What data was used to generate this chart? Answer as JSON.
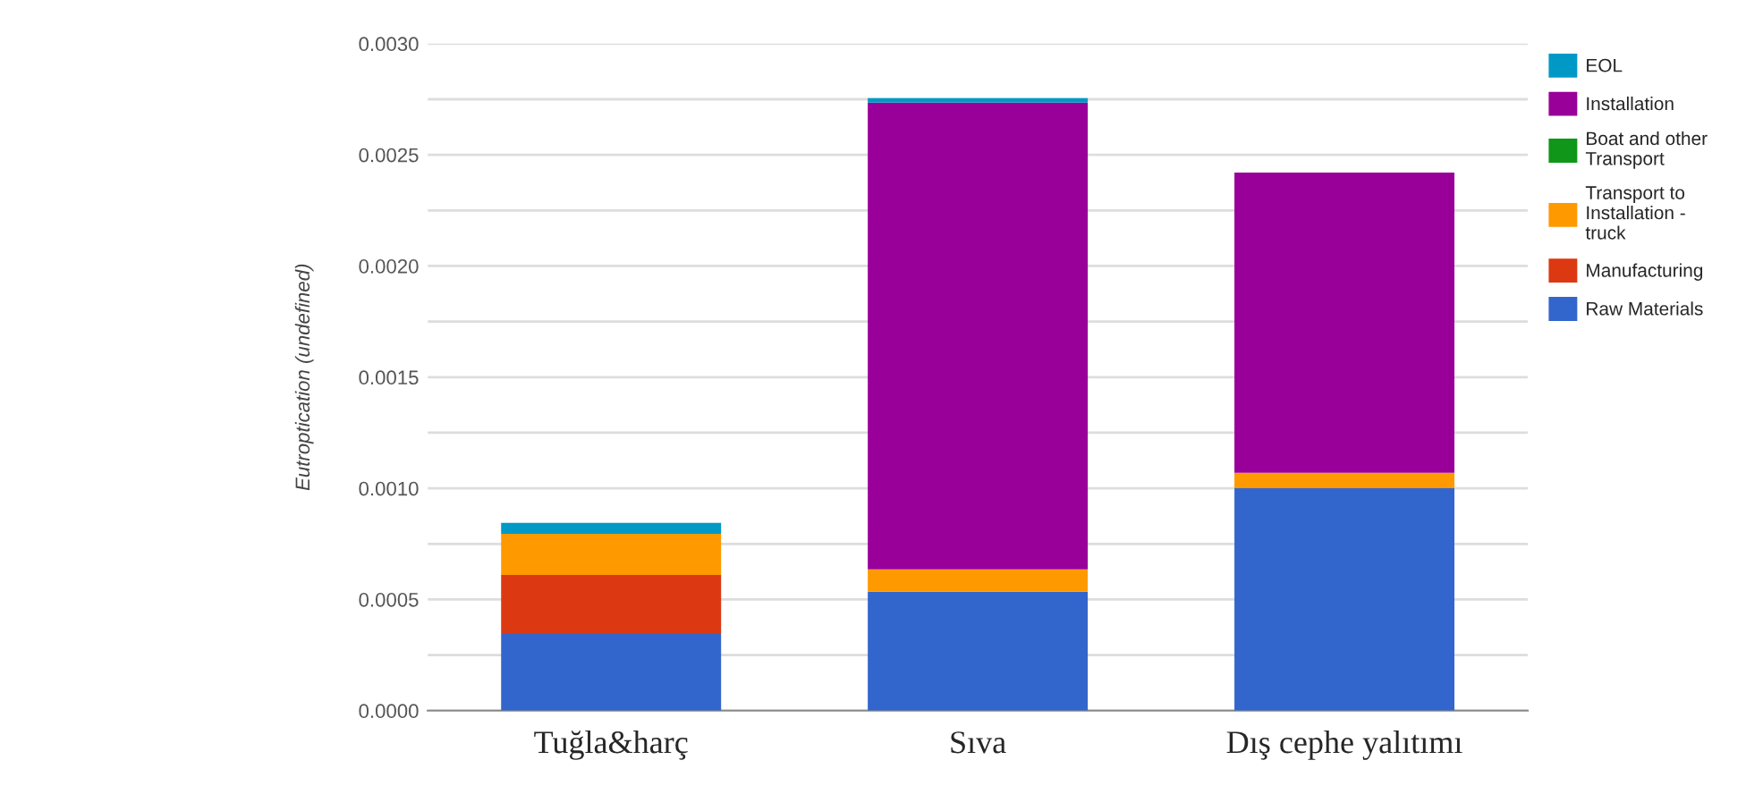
{
  "chart_data": {
    "type": "bar",
    "stacked": true,
    "ylabel": "Eutroptication (undefined)",
    "categories": [
      "Tuğla&harç",
      "Sıva",
      "Dış cephe yalıtımı"
    ],
    "series": [
      {
        "name": "Raw Materials",
        "color": "#3366cc",
        "values": [
          0.000345,
          0.000535,
          0.001
        ]
      },
      {
        "name": "Manufacturing",
        "color": "#dc3912",
        "values": [
          0.000265,
          null,
          null
        ]
      },
      {
        "name": "Transport to Installation - truck",
        "color": "#ff9900",
        "values": [
          0.000185,
          0.0001,
          7e-05
        ]
      },
      {
        "name": "Boat and other Transport",
        "color": "#109618",
        "values": [
          null,
          null,
          null
        ]
      },
      {
        "name": "Installation",
        "color": "#990099",
        "values": [
          null,
          0.0021,
          0.00135
        ]
      },
      {
        "name": "EOL",
        "color": "#0099c6",
        "values": [
          5e-05,
          2e-05,
          null
        ]
      }
    ],
    "ylim": [
      0,
      0.003
    ],
    "yticks": [
      {
        "value": 0,
        "label": "0.0000"
      },
      {
        "value": 0.00025,
        "label": null
      },
      {
        "value": 0.0005,
        "label": "0.0005"
      },
      {
        "value": 0.00075,
        "label": null
      },
      {
        "value": 0.001,
        "label": "0.0010"
      },
      {
        "value": 0.00125,
        "label": null
      },
      {
        "value": 0.0015,
        "label": "0.0015"
      },
      {
        "value": 0.00175,
        "label": null
      },
      {
        "value": 0.002,
        "label": "0.0020"
      },
      {
        "value": 0.00225,
        "label": null
      },
      {
        "value": 0.0025,
        "label": "0.0025"
      },
      {
        "value": 0.00275,
        "label": null
      },
      {
        "value": 0.003,
        "label": "0.0030"
      }
    ],
    "grid": "y",
    "legend": "right"
  }
}
